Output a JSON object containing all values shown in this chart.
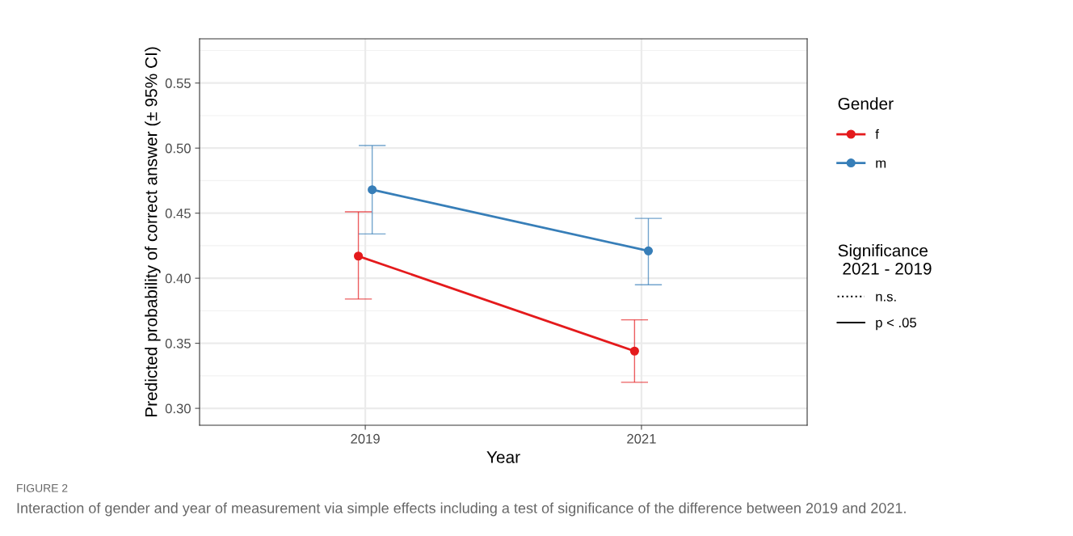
{
  "chart_data": {
    "type": "line",
    "xlabel": "Year",
    "ylabel": "Predicted probability of correct answer (± 95% CI)",
    "legend_title": "Gender",
    "categories": [
      "2019",
      "2021"
    ],
    "series": [
      {
        "name": "f",
        "color": "#e41a1c",
        "values": [
          0.417,
          0.344
        ],
        "errors": [
          [
            0.384,
            0.451
          ],
          [
            0.32,
            0.368
          ]
        ],
        "line_style": "solid"
      },
      {
        "name": "m",
        "color": "#377eb8",
        "values": [
          0.468,
          0.421
        ],
        "errors": [
          [
            0.434,
            0.502
          ],
          [
            0.395,
            0.446
          ]
        ],
        "line_style": "solid"
      }
    ],
    "ylim": [
      0.287,
      0.584
    ],
    "yticks": [
      {
        "value": 0.3,
        "label": "0.30"
      },
      {
        "value": 0.35,
        "label": "0.35"
      },
      {
        "value": 0.4,
        "label": "0.40"
      },
      {
        "value": 0.45,
        "label": "0.45"
      },
      {
        "value": 0.5,
        "label": "0.50"
      },
      {
        "value": 0.55,
        "label": "0.55"
      }
    ],
    "grid": true,
    "legend": "right",
    "marker": "circle",
    "annotations": [
      "Significance\n 2021 - 2019",
      "n.s.",
      "p < .05",
      "FIGURE 2",
      "Interaction of gender and year of measurement via simple effects including a test of significance of the difference between 2019 and 2021."
    ]
  }
}
